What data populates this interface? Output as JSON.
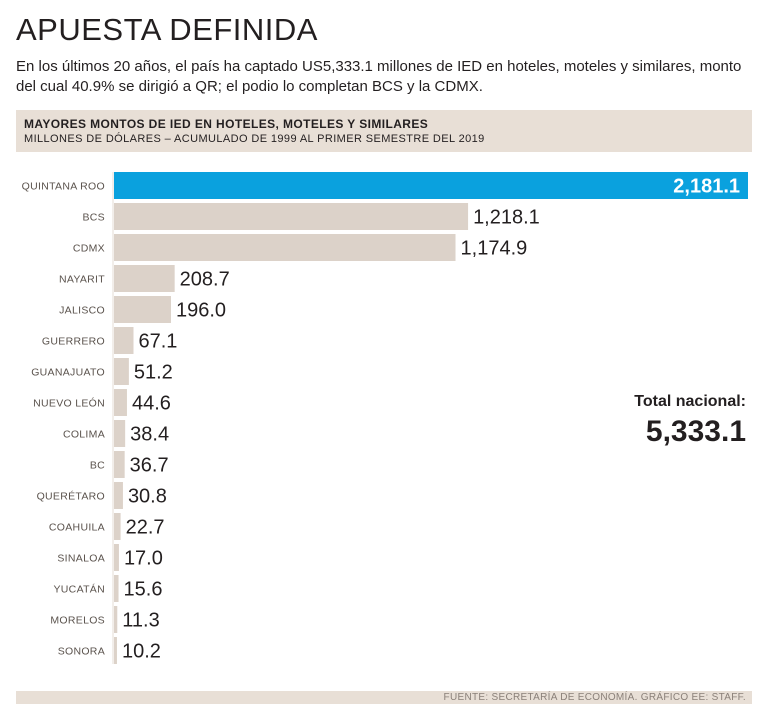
{
  "header": {
    "title": "APUESTA DEFINIDA",
    "subtitle": "En los últimos 20 años, el país ha captado US5,333.1 millones de IED en hoteles, moteles y similares, monto del cual 40.9% se dirigió a QR; el podio lo completan BCS y la CDMX."
  },
  "total": {
    "label": "Total nacional:",
    "value": "5,333.1"
  },
  "footer": {
    "source": "FUENTE: SECRETARÍA DE ECONOMÍA. GRÁFICO EE: STAFF."
  },
  "colors": {
    "highlight": "#0aa1de",
    "bar": "#dcd2c9",
    "band": "#e8dfd6",
    "text": "#231f20",
    "highlight_text": "#ffffff"
  },
  "chart_data": {
    "type": "bar",
    "orientation": "horizontal",
    "title": "MAYORES MONTOS DE IED EN HOTELES, MOTELES Y SIMILARES",
    "subtitle": "MILLONES DE DÓLARES – ACUMULADO DE 1999 AL PRIMER SEMESTRE DEL 2019",
    "categories": [
      "QUINTANA ROO",
      "BCS",
      "CDMX",
      "NAYARIT",
      "JALISCO",
      "GUERRERO",
      "GUANAJUATO",
      "NUEVO LEÓN",
      "COLIMA",
      "BC",
      "QUERÉTARO",
      "COAHUILA",
      "SINALOA",
      "YUCATÁN",
      "MORELOS",
      "SONORA"
    ],
    "values": [
      2181.1,
      1218.1,
      1174.9,
      208.7,
      196.0,
      67.1,
      51.2,
      44.6,
      38.4,
      36.7,
      30.8,
      22.7,
      17.0,
      15.6,
      11.3,
      10.2
    ],
    "labels": [
      "2,181.1",
      "1,218.1",
      "1,174.9",
      "208.7",
      "196.0",
      "67.1",
      "51.2",
      "44.6",
      "38.4",
      "36.7",
      "30.8",
      "22.7",
      "17.0",
      "15.6",
      "11.3",
      "10.2"
    ],
    "highlight_index": 0,
    "xlim": [
      0,
      2181.1
    ],
    "grid": false
  }
}
